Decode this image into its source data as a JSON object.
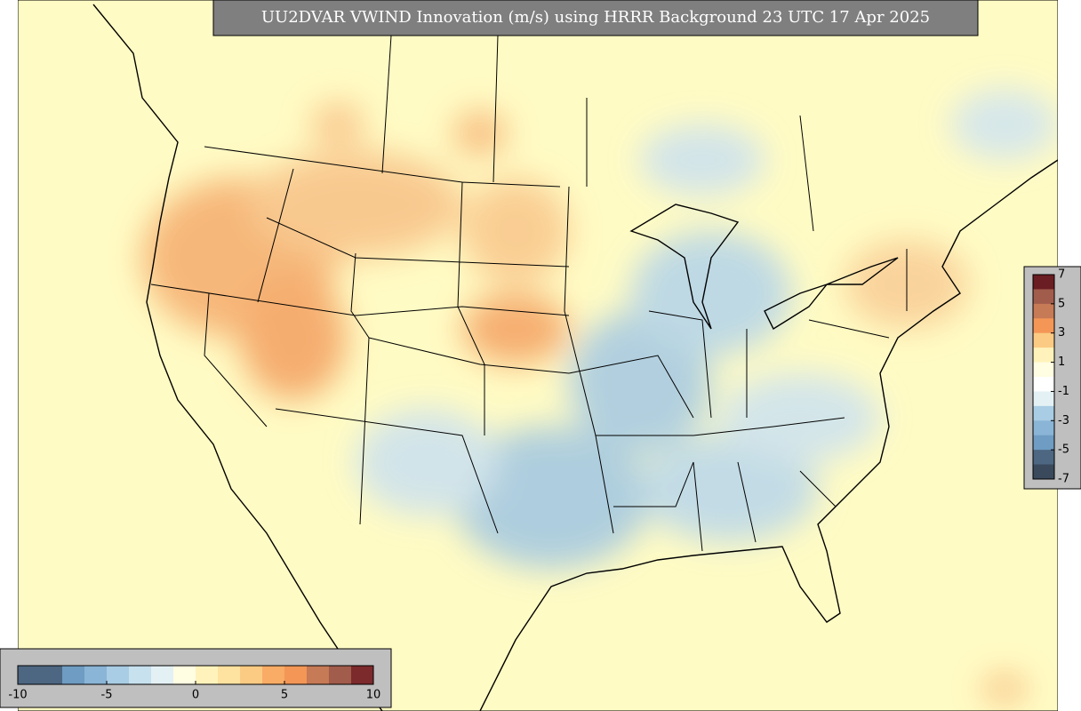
{
  "title": "UU2DVAR VWIND Innovation (m/s) using HRRR Background 23 UTC 17 Apr 2025",
  "colorbars": [
    {
      "orientation": "horizontal",
      "ticks": [
        -10,
        -5,
        0,
        5,
        10
      ],
      "colors": [
        "#4d6782",
        "#4d6782",
        "#6e9cc2",
        "#8ab5d6",
        "#a9cde4",
        "#c7e1ee",
        "#e4f1f4",
        "#fffde2",
        "#fff3bb",
        "#fde2a0",
        "#fbcb83",
        "#f8ac65",
        "#f39656",
        "#c67a55",
        "#a15c4b",
        "#7c2a2c"
      ]
    },
    {
      "orientation": "vertical",
      "ticks": [
        7,
        5,
        3,
        1,
        -1,
        -3,
        -5,
        -7
      ],
      "colors": [
        "#6a1d22",
        "#a15c4b",
        "#c67a55",
        "#f39656",
        "#fbcb83",
        "#fff3bb",
        "#fffde2",
        "#ffffff",
        "#e4f1f4",
        "#a9cde4",
        "#8ab5d6",
        "#6e9cc2",
        "#4d6782",
        "#3a4a5c"
      ]
    }
  ]
}
